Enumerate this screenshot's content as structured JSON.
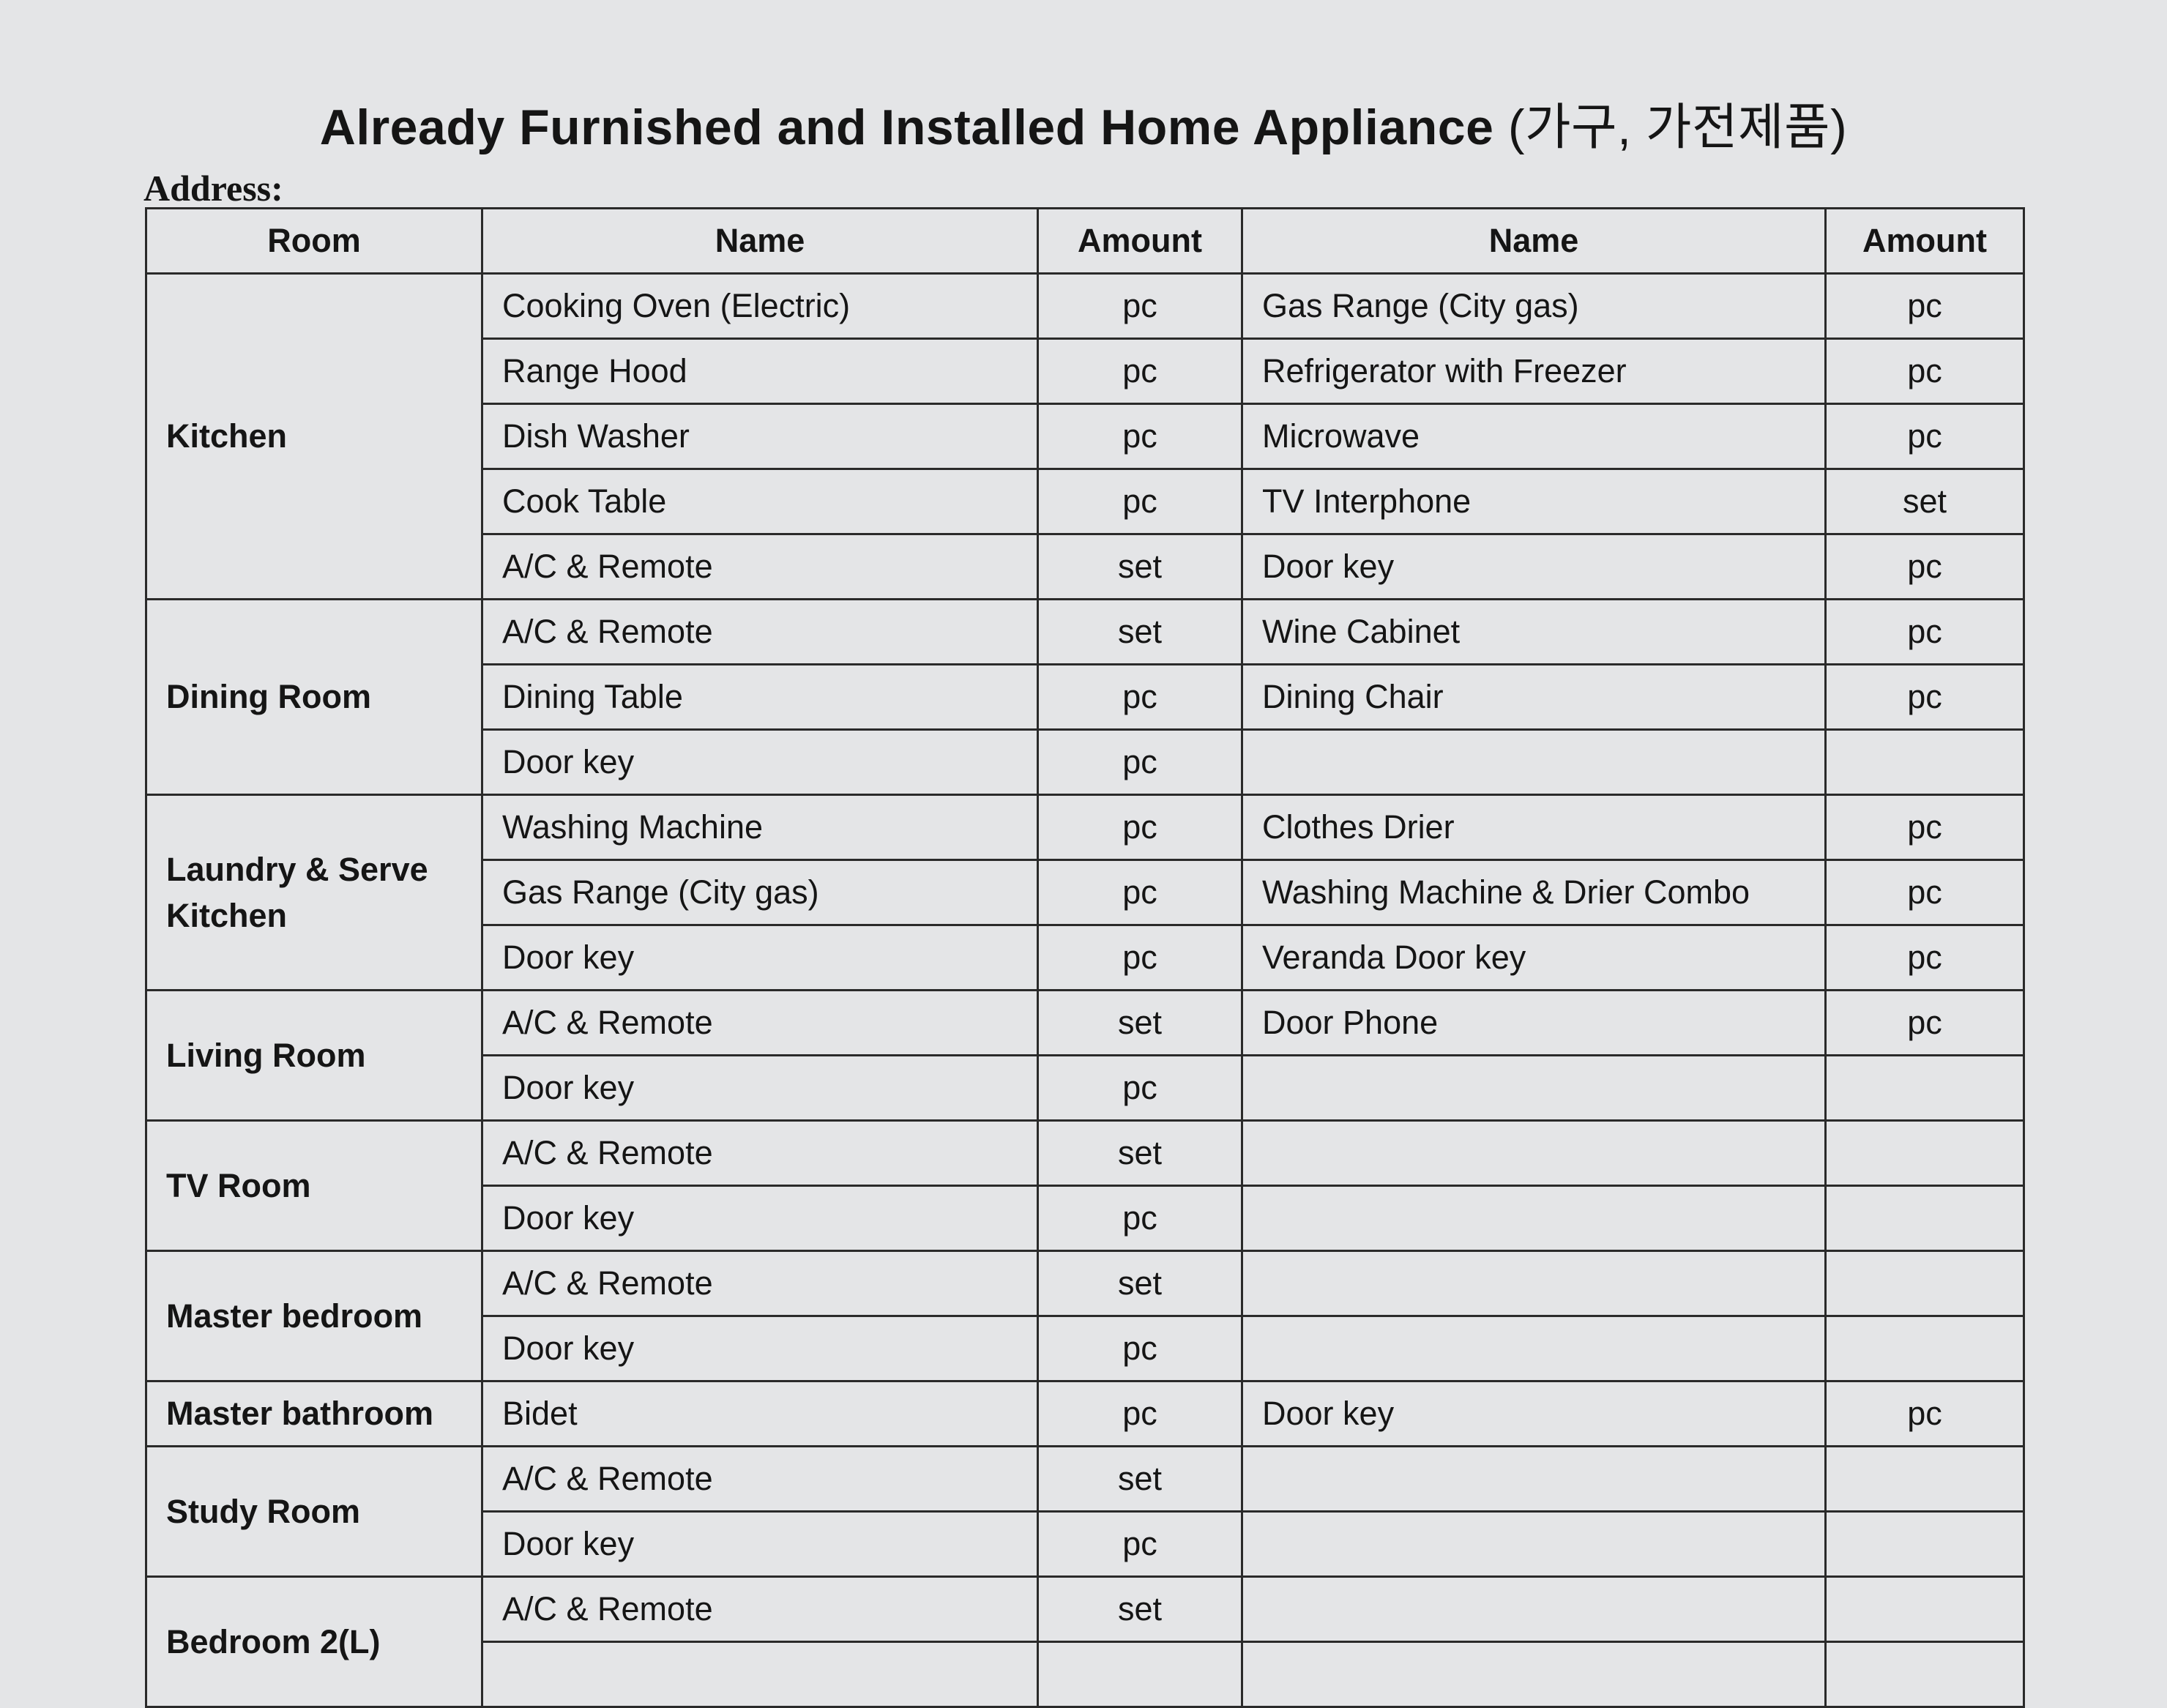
{
  "title": {
    "en": "Already Furnished and Installed Home Appliance",
    "ko": "(가구, 가전제품)"
  },
  "address_label": "Address:",
  "headers": [
    "Room",
    "Name",
    "Amount",
    "Name",
    "Amount"
  ],
  "rooms": [
    {
      "room": "Kitchen",
      "rows": [
        [
          "Cooking Oven (Electric)",
          "pc",
          "Gas Range (City gas)",
          "pc"
        ],
        [
          "Range Hood",
          "pc",
          "Refrigerator with Freezer",
          "pc"
        ],
        [
          "Dish Washer",
          "pc",
          "Microwave",
          "pc"
        ],
        [
          "Cook Table",
          "pc",
          "TV Interphone",
          "set"
        ],
        [
          "A/C & Remote",
          "set",
          "Door key",
          "pc"
        ]
      ]
    },
    {
      "room": "Dining Room",
      "rows": [
        [
          "A/C & Remote",
          "set",
          "Wine Cabinet",
          "pc"
        ],
        [
          "Dining Table",
          "pc",
          "Dining Chair",
          "pc"
        ],
        [
          "Door key",
          "pc",
          "",
          ""
        ]
      ]
    },
    {
      "room": "Laundry & Serve Kitchen",
      "rows": [
        [
          "Washing Machine",
          "pc",
          "Clothes Drier",
          "pc"
        ],
        [
          "Gas Range (City gas)",
          "pc",
          "Washing Machine & Drier Combo",
          "pc"
        ],
        [
          "Door key",
          "pc",
          "Veranda Door key",
          "pc"
        ]
      ]
    },
    {
      "room": "Living Room",
      "rows": [
        [
          "A/C & Remote",
          "set",
          "Door Phone",
          "pc"
        ],
        [
          "Door key",
          "pc",
          "",
          ""
        ]
      ]
    },
    {
      "room": "TV Room",
      "rows": [
        [
          "A/C & Remote",
          "set",
          "",
          ""
        ],
        [
          "Door key",
          "pc",
          "",
          ""
        ]
      ]
    },
    {
      "room": "Master bedroom",
      "rows": [
        [
          "A/C & Remote",
          "set",
          "",
          ""
        ],
        [
          "Door key",
          "pc",
          "",
          ""
        ]
      ]
    },
    {
      "room": "Master bathroom",
      "rows": [
        [
          "Bidet",
          "pc",
          "Door key",
          "pc"
        ]
      ]
    },
    {
      "room": "Study Room",
      "rows": [
        [
          "A/C & Remote",
          "set",
          "",
          ""
        ],
        [
          "Door key",
          "pc",
          "",
          ""
        ]
      ]
    },
    {
      "room": "Bedroom 2(L)",
      "rows": [
        [
          "A/C & Remote",
          "set",
          "",
          ""
        ],
        [
          "",
          "",
          "",
          ""
        ]
      ]
    }
  ]
}
